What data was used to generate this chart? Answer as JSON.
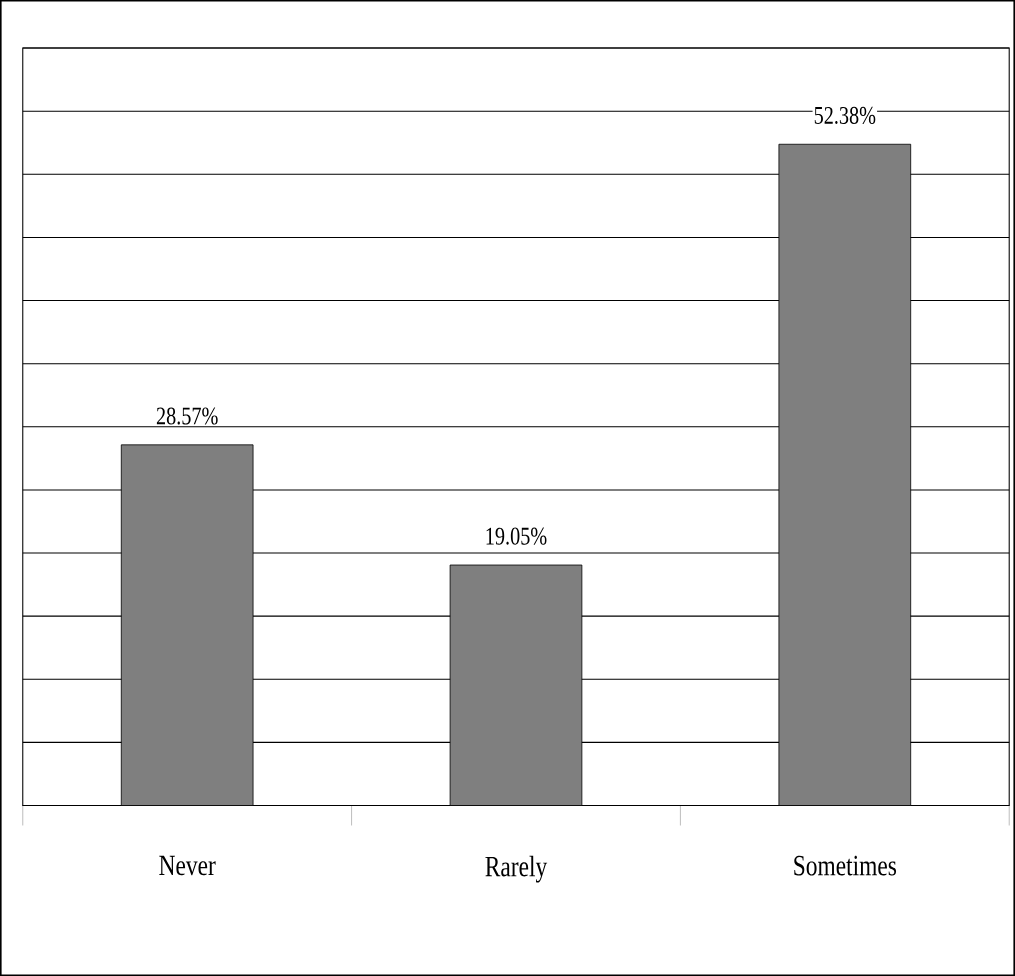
{
  "chart_data": {
    "type": "bar",
    "categories": [
      "Never",
      "Rarely",
      "Sometimes"
    ],
    "values": [
      28.57,
      19.05,
      52.38
    ],
    "color": "#7f7f7f",
    "value_labels": [
      "28.57%",
      "19.05%",
      "52.38%"
    ],
    "ylim": [
      0,
      60
    ],
    "grid": "y",
    "tick_labels": "x"
  }
}
